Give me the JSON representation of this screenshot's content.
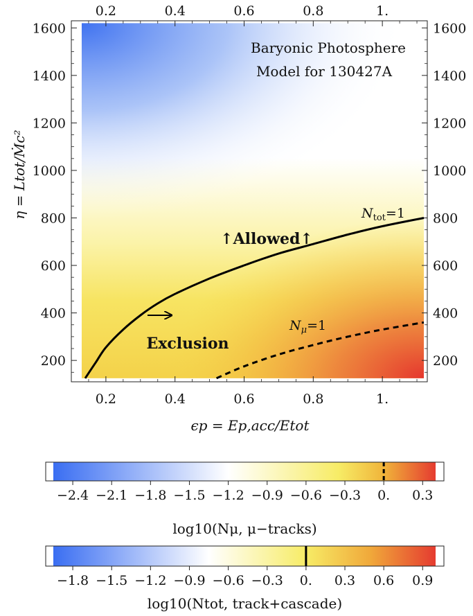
{
  "chart_data": {
    "type": "heatmap",
    "title_lines": [
      "Baryonic Photosphere",
      "Model for 130427A"
    ],
    "xlabel": "ϵp = Ep,acc/Etot",
    "ylabel": "η = Ltot/Ṁc²",
    "xlim": [
      0.1,
      1.13
    ],
    "ylim": [
      110,
      1630
    ],
    "x_ticks": [
      0.2,
      0.4,
      0.6,
      0.8,
      1.0
    ],
    "x_tick_labels": [
      "0.2",
      "0.4",
      "0.6",
      "0.8",
      "1."
    ],
    "y_ticks": [
      200,
      400,
      600,
      800,
      1000,
      1200,
      1400,
      1600
    ],
    "y_tick_labels": [
      "200",
      "400",
      "600",
      "800",
      "1000",
      "1200",
      "1400",
      "1600"
    ],
    "data_region": {
      "x": [
        0.13,
        1.12
      ],
      "y": [
        125,
        1620
      ]
    },
    "curves": [
      {
        "name": "Ntot=1",
        "style": "solid",
        "x": [
          0.14,
          0.17,
          0.2,
          0.25,
          0.3,
          0.35,
          0.4,
          0.5,
          0.6,
          0.7,
          0.8,
          0.9,
          1.0,
          1.12
        ],
        "y": [
          125,
          190,
          255,
          330,
          390,
          440,
          480,
          545,
          600,
          650,
          690,
          730,
          765,
          800
        ]
      },
      {
        "name": "Nμ=1",
        "style": "dashed",
        "x": [
          0.52,
          0.6,
          0.7,
          0.8,
          0.9,
          1.0,
          1.12
        ],
        "y": [
          125,
          175,
          225,
          265,
          300,
          330,
          360
        ]
      }
    ],
    "annotations": {
      "allowed": "↑Allowed↑",
      "exclusion": "Exclusion",
      "ntot_label": {
        "base": "N",
        "sub": "tot",
        "rest": "=1"
      },
      "nmu_label": {
        "base": "N",
        "sub": "μ",
        "rest": "=1"
      }
    },
    "colorbars": [
      {
        "label": "log10(Nμ, μ−tracks)",
        "range": [
          -2.55,
          0.4
        ],
        "ticks": [
          -2.4,
          -2.1,
          -1.8,
          -1.5,
          -1.2,
          -0.9,
          -0.6,
          -0.3,
          0.0,
          0.3
        ],
        "tick_labels": [
          "−2.4",
          "−2.1",
          "−1.8",
          "−1.5",
          "−1.2",
          "−0.9",
          "−0.6",
          "−0.3",
          "0.",
          "0.3"
        ],
        "marker_value": 0.0,
        "marker_style": "dashed",
        "gradient_stops": [
          {
            "value": -2.55,
            "color": "#3a6ef2"
          },
          {
            "value": -1.2,
            "color": "#ffffff"
          },
          {
            "value": -0.35,
            "color": "#f7ec66"
          },
          {
            "value": 0.0,
            "color": "#f0b43a"
          },
          {
            "value": 0.4,
            "color": "#e53b30"
          }
        ]
      },
      {
        "label": "log10(Ntot, track+cascade)",
        "range": [
          -1.95,
          1.0
        ],
        "ticks": [
          -1.8,
          -1.5,
          -1.2,
          -0.9,
          -0.6,
          -0.3,
          0.0,
          0.3,
          0.6,
          0.9
        ],
        "tick_labels": [
          "−1.8",
          "−1.5",
          "−1.2",
          "−0.9",
          "−0.6",
          "−0.3",
          "0.",
          "0.3",
          "0.6",
          "0.9"
        ],
        "marker_value": 0.0,
        "marker_style": "solid",
        "gradient_stops": [
          {
            "value": -1.95,
            "color": "#3a6ef2"
          },
          {
            "value": -0.75,
            "color": "#ffffff"
          },
          {
            "value": 0.0,
            "color": "#f7ec66"
          },
          {
            "value": 0.5,
            "color": "#f0a83a"
          },
          {
            "value": 1.0,
            "color": "#e53b30"
          }
        ]
      }
    ],
    "colors": {
      "blue": "#3a6ef2",
      "white": "#ffffff",
      "yellow": "#f7ec66",
      "orange": "#f0a83a",
      "red": "#e53b30"
    }
  }
}
